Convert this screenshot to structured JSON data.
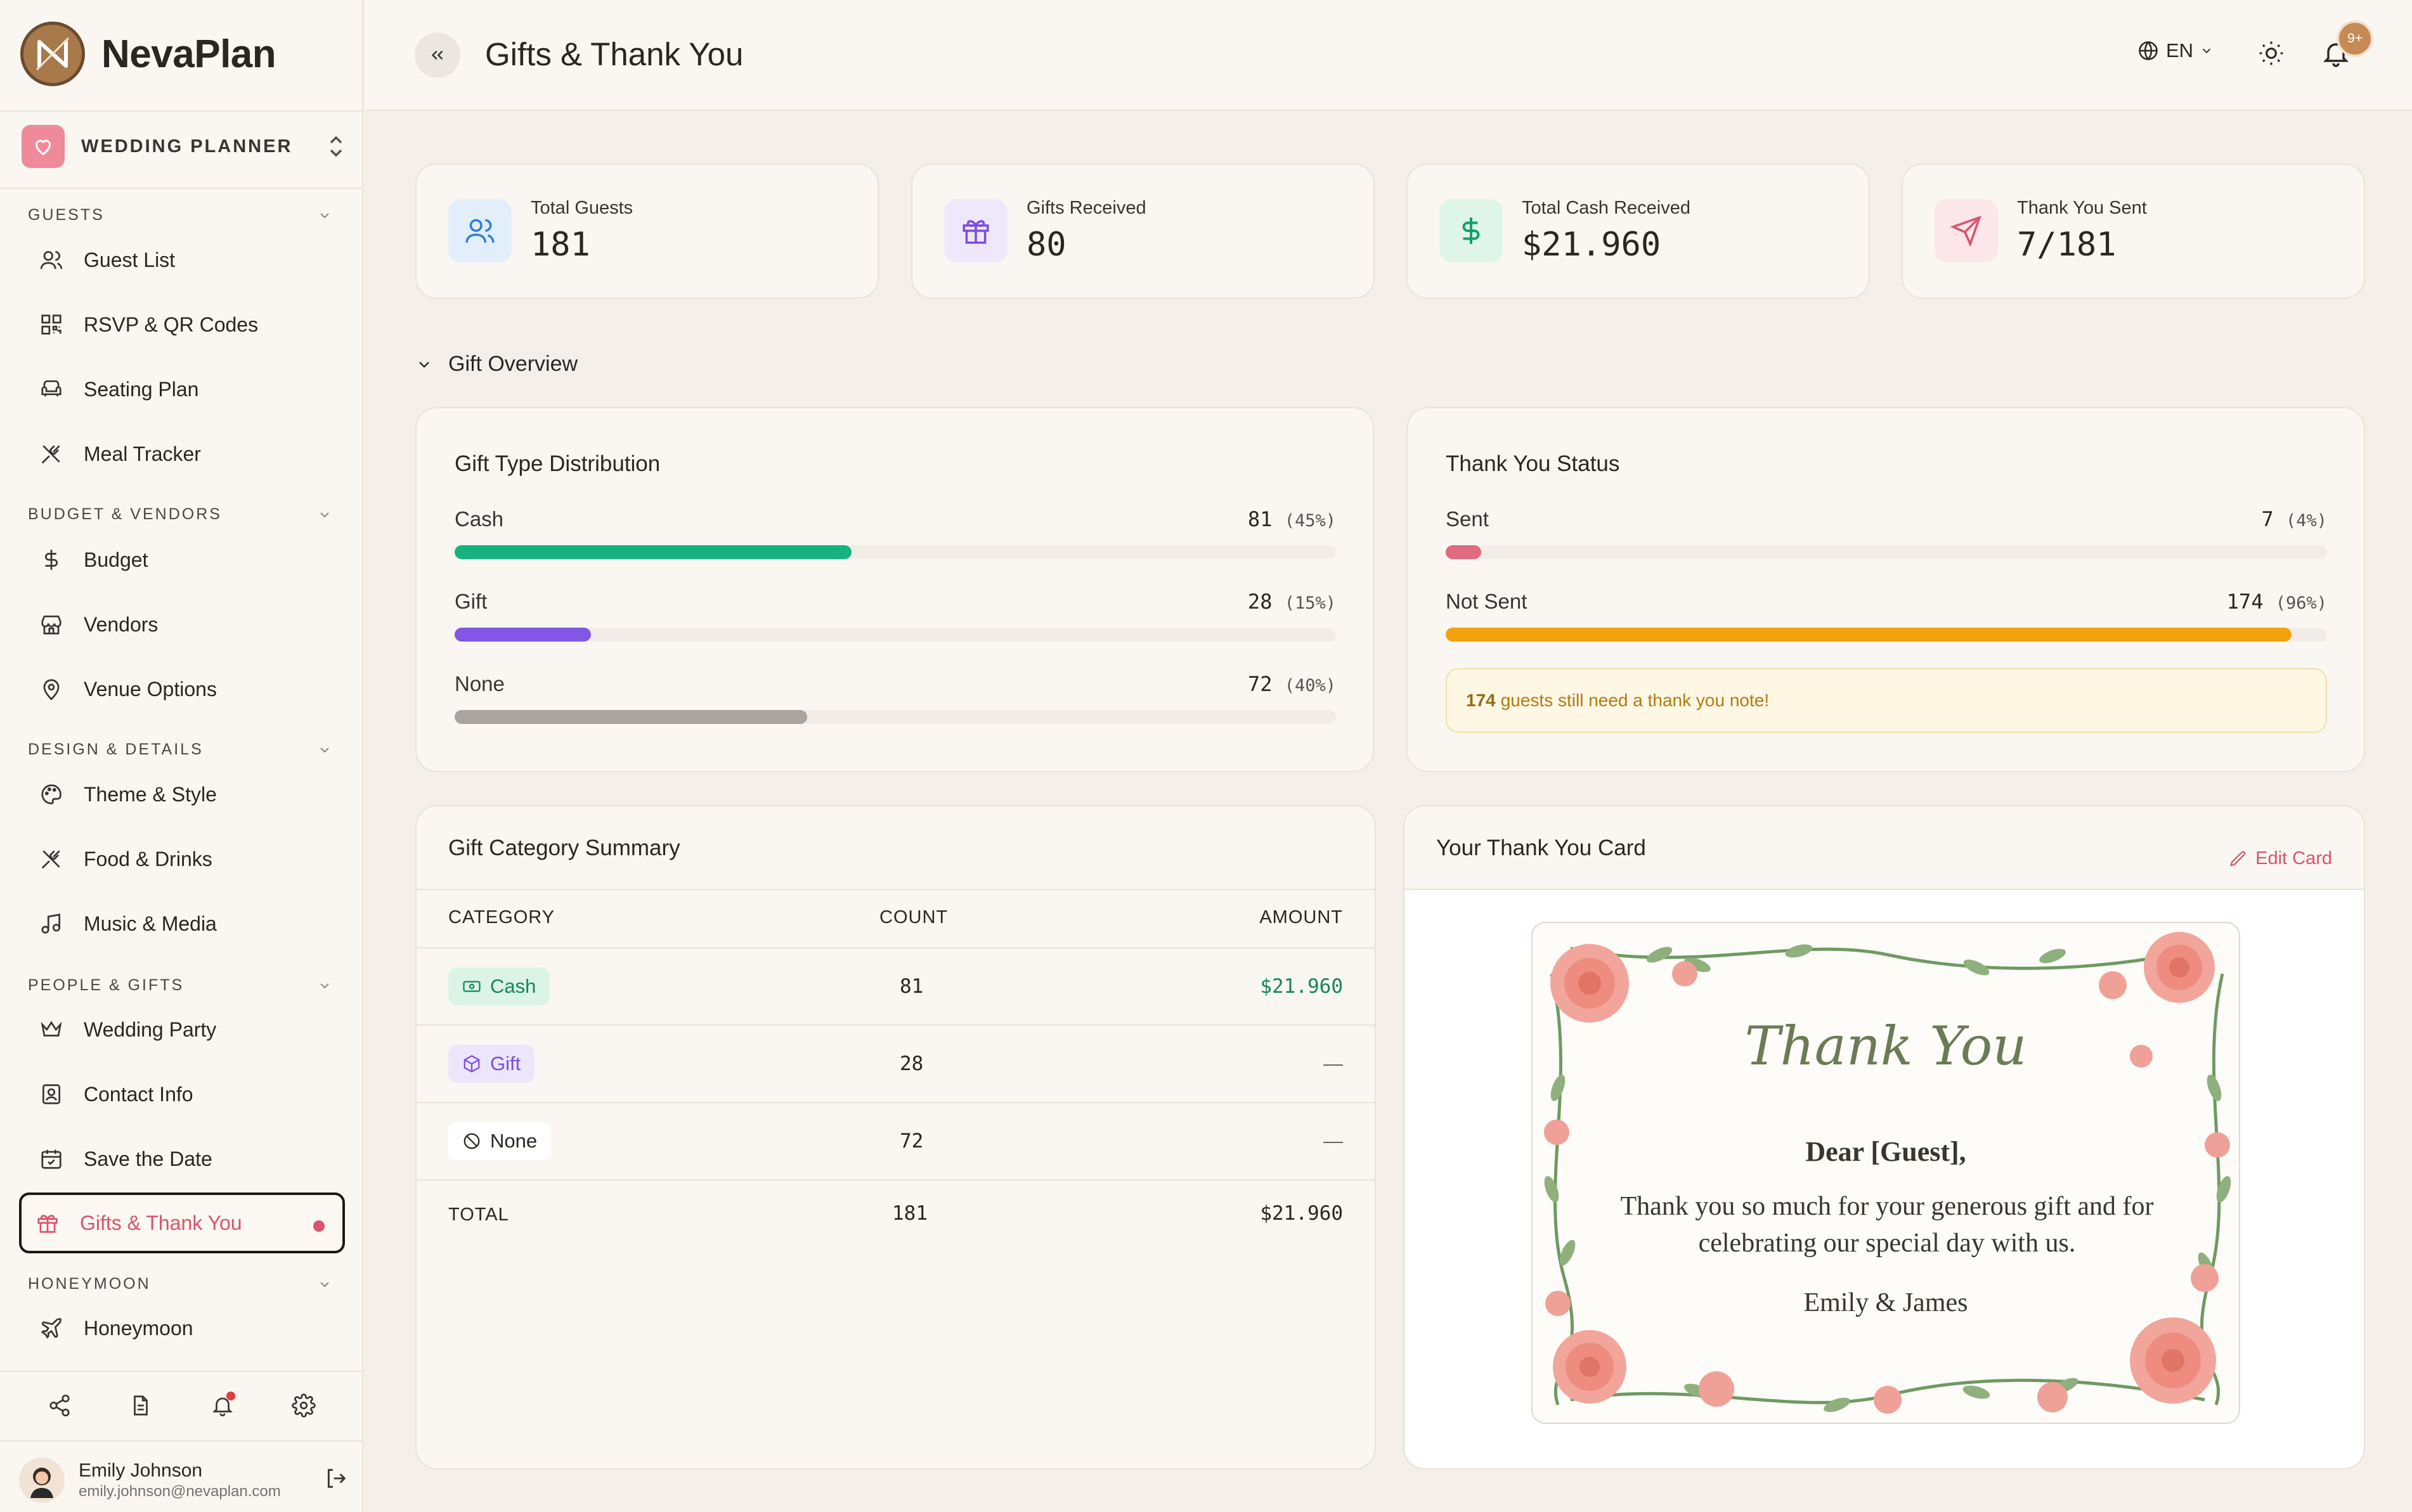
{
  "brand": {
    "name": "NevaPlan"
  },
  "planner": {
    "label": "WEDDING PLANNER"
  },
  "sidebar": {
    "sections": [
      {
        "title": "GUESTS",
        "items": [
          "Guest List",
          "RSVP & QR Codes",
          "Seating Plan",
          "Meal Tracker"
        ]
      },
      {
        "title": "BUDGET & VENDORS",
        "items": [
          "Budget",
          "Vendors",
          "Venue Options"
        ]
      },
      {
        "title": "DESIGN & DETAILS",
        "items": [
          "Theme & Style",
          "Food & Drinks",
          "Music & Media"
        ]
      },
      {
        "title": "PEOPLE & GIFTS",
        "items": [
          "Wedding Party",
          "Contact Info",
          "Save the Date",
          "Gifts & Thank You"
        ]
      },
      {
        "title": "HONEYMOON",
        "items": [
          "Honeymoon"
        ]
      }
    ],
    "active_item": "Gifts & Thank You"
  },
  "user": {
    "name": "Emily Johnson",
    "email": "emily.johnson@nevaplan.com"
  },
  "header": {
    "title": "Gifts & Thank You",
    "language": "EN",
    "notif_badge": "9+"
  },
  "stats": [
    {
      "label": "Total Guests",
      "value": "181",
      "color": "#e3eefb",
      "icon": "users-icon"
    },
    {
      "label": "Gifts Received",
      "value": "80",
      "color": "#efe8fb",
      "icon": "gift-icon"
    },
    {
      "label": "Total Cash Received",
      "value": "$21.960",
      "color": "#dff5ea",
      "icon": "dollar-icon"
    },
    {
      "label": "Thank You Sent",
      "value": "7/181",
      "color": "#fbe6ea",
      "icon": "send-icon"
    }
  ],
  "overview": {
    "title": "Gift Overview"
  },
  "distribution": {
    "title": "Gift Type Distribution",
    "rows": [
      {
        "name": "Cash",
        "count": "81",
        "pct": "(45%)",
        "fraction": 0.45,
        "color": "#16b37e"
      },
      {
        "name": "Gift",
        "count": "28",
        "pct": "(15%)",
        "fraction": 0.155,
        "color": "#8257e5"
      },
      {
        "name": "None",
        "count": "72",
        "pct": "(40%)",
        "fraction": 0.4,
        "color": "#a9a49e"
      }
    ]
  },
  "thankyou_status": {
    "title": "Thank You Status",
    "rows": [
      {
        "name": "Sent",
        "count": "7",
        "pct": "(4%)",
        "fraction": 0.04,
        "color": "#e06a80"
      },
      {
        "name": "Not Sent",
        "count": "174",
        "pct": "(96%)",
        "fraction": 0.96,
        "color": "#f2a20c"
      }
    ],
    "alert_count": "174",
    "alert_text": "guests still need a thank you note!"
  },
  "category_summary": {
    "title": "Gift Category Summary",
    "headers": [
      "CATEGORY",
      "COUNT",
      "AMOUNT"
    ],
    "rows": [
      {
        "category": "Cash",
        "count": "81",
        "amount": "$21.960"
      },
      {
        "category": "Gift",
        "count": "28",
        "amount": "—"
      },
      {
        "category": "None",
        "count": "72",
        "amount": "—"
      }
    ],
    "total": {
      "label": "TOTAL",
      "count": "181",
      "amount": "$21.960"
    }
  },
  "card": {
    "title": "Your Thank You Card",
    "edit_label": "Edit Card",
    "heading": "Thank You",
    "greeting": "Dear [Guest],",
    "message": "Thank you so much for your generous gift and for celebrating our special day with us.",
    "signature": "Emily & James"
  }
}
